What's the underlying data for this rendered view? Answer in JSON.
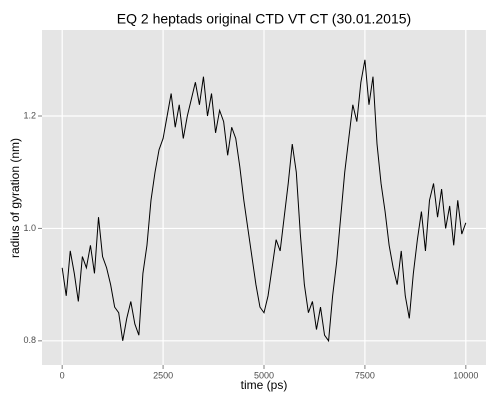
{
  "chart_data": {
    "type": "line",
    "title": "EQ 2 heptads original CTD VT CT (30.01.2015)",
    "x_label": "time (ps)",
    "y_label": "radius of gyration (nm)",
    "x": [
      0,
      100,
      200,
      300,
      400,
      500,
      600,
      700,
      800,
      900,
      1000,
      1100,
      1200,
      1300,
      1400,
      1500,
      1600,
      1700,
      1800,
      1900,
      2000,
      2100,
      2200,
      2300,
      2400,
      2500,
      2600,
      2700,
      2800,
      2900,
      3000,
      3100,
      3200,
      3300,
      3400,
      3500,
      3600,
      3700,
      3800,
      3900,
      4000,
      4100,
      4200,
      4300,
      4400,
      4500,
      4600,
      4700,
      4800,
      4900,
      5000,
      5100,
      5200,
      5300,
      5400,
      5500,
      5600,
      5700,
      5800,
      5900,
      6000,
      6100,
      6200,
      6300,
      6400,
      6500,
      6600,
      6700,
      6800,
      6900,
      7000,
      7100,
      7200,
      7300,
      7400,
      7500,
      7600,
      7700,
      7800,
      7900,
      8000,
      8100,
      8200,
      8300,
      8400,
      8500,
      8600,
      8700,
      8800,
      8900,
      9000,
      9100,
      9200,
      9300,
      9400,
      9500,
      9600,
      9700,
      9800,
      9900,
      10000
    ],
    "series": [
      {
        "color": "#000000",
        "values": [
          0.93,
          0.88,
          0.96,
          0.92,
          0.87,
          0.95,
          0.93,
          0.97,
          0.92,
          1.02,
          0.95,
          0.93,
          0.9,
          0.86,
          0.85,
          0.8,
          0.84,
          0.87,
          0.83,
          0.81,
          0.92,
          0.97,
          1.05,
          1.1,
          1.14,
          1.16,
          1.2,
          1.24,
          1.18,
          1.22,
          1.16,
          1.2,
          1.23,
          1.26,
          1.22,
          1.27,
          1.2,
          1.24,
          1.17,
          1.21,
          1.19,
          1.13,
          1.18,
          1.16,
          1.11,
          1.05,
          1.0,
          0.95,
          0.9,
          0.86,
          0.85,
          0.88,
          0.93,
          0.98,
          0.96,
          1.02,
          1.08,
          1.15,
          1.1,
          0.99,
          0.9,
          0.85,
          0.87,
          0.82,
          0.86,
          0.81,
          0.8,
          0.88,
          0.94,
          1.02,
          1.1,
          1.16,
          1.22,
          1.19,
          1.26,
          1.3,
          1.22,
          1.27,
          1.15,
          1.08,
          1.03,
          0.97,
          0.93,
          0.9,
          0.96,
          0.88,
          0.84,
          0.92,
          0.98,
          1.03,
          0.96,
          1.05,
          1.08,
          1.02,
          1.07,
          1.0,
          1.04,
          0.97,
          1.05,
          0.99,
          1.01
        ]
      }
    ],
    "xlim": [
      -500,
      10500
    ],
    "ylim": [
      0.757,
      1.353
    ],
    "xticks": [
      0,
      2500,
      5000,
      7500,
      10000
    ],
    "yticks": [
      0.8,
      {
        "value": 1,
        "label": "1.0"
      },
      1.2
    ],
    "grid": true
  }
}
